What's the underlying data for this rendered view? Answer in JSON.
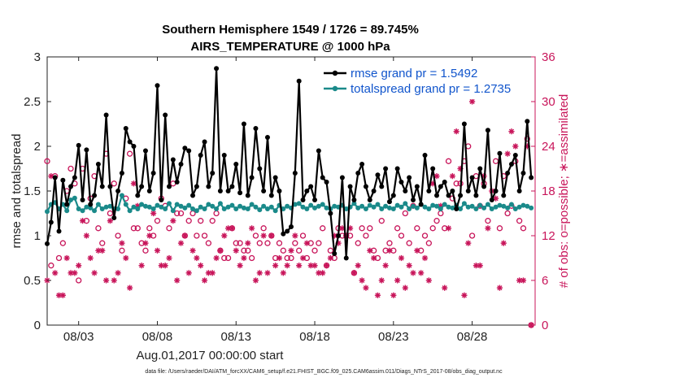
{
  "chart_data": {
    "type": "line",
    "title": "Southern Hemisphere 1549 / 1726 = 89.745%",
    "subtitle": "AIRS_TEMPERATURE @ 1000 hPa",
    "xlabel": "Aug.01,2017 00:00:00 start",
    "ylabel": "rmse and totalspread",
    "ylabel_right": "# of obs: o=possible; ∗=assimilated",
    "footnote": "data file: /Users/raeder/DAI/ATM_forcXX/CAM6_setup/f.e21.FHIST_BGC.f09_025.CAM6assim.011/Diags_NTrS_2017-08/obs_diag_output.nc",
    "xlim": [
      1.0,
      32.0
    ],
    "ylim": [
      0,
      3
    ],
    "ylim_right": [
      0,
      36
    ],
    "x_ticks": [
      3,
      8,
      13,
      18,
      23,
      28
    ],
    "x_tick_labels": [
      "08/03",
      "08/08",
      "08/13",
      "08/18",
      "08/23",
      "08/28"
    ],
    "y_ticks": [
      0,
      0.5,
      1,
      1.5,
      2,
      2.5,
      3
    ],
    "y_tick_labels": [
      "0",
      "0.5",
      "1",
      "1.5",
      "2",
      "2.5",
      "3"
    ],
    "y_ticks_right": [
      0,
      6,
      12,
      18,
      24,
      30,
      36
    ],
    "y_tick_labels_right": [
      "0",
      "6",
      "12",
      "18",
      "24",
      "30",
      "36"
    ],
    "legend_position": "top-right",
    "x": [
      1.0,
      1.25,
      1.5,
      1.75,
      2.0,
      2.25,
      2.5,
      2.75,
      3.0,
      3.25,
      3.5,
      3.75,
      4.0,
      4.25,
      4.5,
      4.75,
      5.0,
      5.25,
      5.5,
      5.75,
      6.0,
      6.25,
      6.5,
      6.75,
      7.0,
      7.25,
      7.5,
      7.75,
      8.0,
      8.25,
      8.5,
      8.75,
      9.0,
      9.25,
      9.5,
      9.75,
      10.0,
      10.25,
      10.5,
      10.75,
      11.0,
      11.25,
      11.5,
      11.75,
      12.0,
      12.25,
      12.5,
      12.75,
      13.0,
      13.25,
      13.5,
      13.75,
      14.0,
      14.25,
      14.5,
      14.75,
      15.0,
      15.25,
      15.5,
      15.75,
      16.0,
      16.25,
      16.5,
      16.75,
      17.0,
      17.25,
      17.5,
      17.75,
      18.0,
      18.25,
      18.5,
      18.75,
      19.0,
      19.25,
      19.5,
      19.75,
      20.0,
      20.25,
      20.5,
      20.75,
      21.0,
      21.25,
      21.5,
      21.75,
      22.0,
      22.25,
      22.5,
      22.75,
      23.0,
      23.25,
      23.5,
      23.75,
      24.0,
      24.25,
      24.5,
      24.75,
      25.0,
      25.25,
      25.5,
      25.75,
      26.0,
      26.25,
      26.5,
      26.75,
      27.0,
      27.25,
      27.5,
      27.75,
      28.0,
      28.25,
      28.5,
      28.75,
      29.0,
      29.25,
      29.5,
      29.75,
      30.0,
      30.25,
      30.5,
      30.75,
      31.0,
      31.25,
      31.5,
      31.75
    ],
    "series": [
      {
        "name": "rmse grand pr = 1.5492",
        "color": "#000000",
        "marker": "dot",
        "values": [
          0.91,
          1.15,
          1.65,
          1.05,
          1.62,
          1.35,
          1.55,
          1.65,
          2.01,
          1.4,
          1.96,
          1.35,
          1.45,
          1.8,
          1.55,
          2.35,
          1.55,
          1.2,
          1.5,
          1.7,
          2.2,
          2.05,
          2.0,
          1.45,
          1.55,
          1.95,
          1.5,
          1.7,
          2.68,
          1.4,
          2.35,
          1.55,
          1.85,
          1.6,
          1.8,
          1.98,
          1.95,
          1.45,
          1.55,
          1.9,
          2.05,
          1.55,
          1.7,
          2.87,
          1.5,
          1.9,
          1.5,
          1.55,
          1.8,
          1.48,
          2.25,
          1.45,
          1.65,
          2.2,
          1.75,
          1.5,
          2.1,
          1.45,
          1.65,
          1.5,
          1.02,
          1.05,
          1.1,
          1.7,
          2.73,
          1.4,
          1.5,
          1.55,
          1.4,
          1.95,
          1.65,
          1.6,
          1.25,
          0.8,
          1.0,
          1.65,
          0.75,
          1.55,
          1.4,
          1.7,
          1.8,
          1.55,
          1.4,
          1.5,
          1.68,
          1.55,
          1.75,
          1.38,
          1.45,
          1.75,
          1.6,
          1.5,
          1.65,
          1.4,
          1.55,
          1.35,
          1.9,
          1.5,
          1.75,
          1.45,
          1.55,
          1.6,
          1.45,
          1.5,
          1.3,
          1.45,
          2.25,
          1.5,
          1.65,
          1.45,
          1.75,
          1.55,
          2.18,
          1.4,
          1.5,
          1.92,
          1.45,
          1.7,
          1.8,
          1.9,
          1.5,
          1.7,
          2.28,
          1.65
        ],
        "label_values": [
          1.5492
        ]
      },
      {
        "name": "totalspread grand pr = 1.2735",
        "color": "#1a8a8a",
        "marker": "dot",
        "values": [
          1.27,
          1.35,
          1.37,
          1.3,
          1.35,
          1.28,
          1.4,
          1.42,
          1.3,
          1.28,
          1.32,
          1.31,
          1.28,
          1.35,
          1.3,
          1.32,
          1.33,
          1.3,
          1.3,
          1.45,
          1.35,
          1.28,
          1.32,
          1.3,
          1.35,
          1.33,
          1.32,
          1.3,
          1.34,
          1.32,
          1.3,
          1.36,
          1.28,
          1.35,
          1.33,
          1.31,
          1.34,
          1.3,
          1.28,
          1.32,
          1.3,
          1.35,
          1.33,
          1.3,
          1.36,
          1.3,
          1.32,
          1.34,
          1.3,
          1.33,
          1.31,
          1.3,
          1.35,
          1.32,
          1.29,
          1.33,
          1.3,
          1.32,
          1.28,
          1.34,
          1.3,
          1.33,
          1.31,
          1.35,
          1.36,
          1.32,
          1.3,
          1.34,
          1.31,
          1.33,
          1.35,
          1.31,
          1.3,
          1.33,
          1.32,
          1.34,
          1.3,
          1.32,
          1.36,
          1.31,
          1.33,
          1.3,
          1.34,
          1.32,
          1.35,
          1.3,
          1.33,
          1.31,
          1.3,
          1.34,
          1.32,
          1.36,
          1.3,
          1.33,
          1.31,
          1.35,
          1.32,
          1.3,
          1.34,
          1.33,
          1.3,
          1.35,
          1.32,
          1.31,
          1.34,
          1.3,
          1.36,
          1.32,
          1.33,
          1.3,
          1.34,
          1.31,
          1.35,
          1.3,
          1.32,
          1.34,
          1.33,
          1.31,
          1.35,
          1.3,
          1.32,
          1.34,
          1.33,
          1.31
        ]
      }
    ],
    "obs_possible": {
      "name": "possible",
      "color": "#c8155a",
      "marker": "circle",
      "values": [
        22,
        8,
        20,
        9,
        11,
        18,
        21,
        19,
        6,
        21,
        14,
        17,
        20,
        13,
        11,
        23,
        15,
        19,
        12,
        10,
        17,
        23,
        13,
        13,
        11,
        10,
        13,
        12,
        14,
        17,
        16,
        13,
        19,
        15,
        15,
        12,
        14,
        15,
        12,
        14,
        12,
        11,
        14,
        15,
        10,
        9,
        9,
        13,
        11,
        11,
        10,
        10,
        9,
        12,
        11,
        13,
        11,
        12,
        9,
        11,
        10,
        9,
        9,
        11,
        10,
        12,
        9,
        11,
        10,
        11,
        13,
        8,
        10,
        9,
        13,
        12,
        12,
        12,
        7,
        11,
        13,
        12,
        13,
        10,
        9,
        14,
        10,
        11,
        10,
        13,
        12,
        15,
        11,
        16,
        13,
        10,
        12,
        11,
        13,
        14,
        15,
        13,
        22,
        17,
        19,
        19,
        22,
        24,
        12,
        20,
        16,
        19,
        14,
        31,
        22,
        13,
        20,
        15,
        16,
        22,
        14,
        13,
        25,
        0
      ]
    },
    "obs_assimilated": {
      "name": "assimilated",
      "color": "#c8155a",
      "marker": "asterisk",
      "values": [
        6,
        20,
        7,
        4,
        4,
        9,
        7,
        7,
        8,
        14,
        12,
        9,
        7,
        10,
        10,
        6,
        14,
        6,
        7,
        11,
        9,
        5,
        19,
        16,
        8,
        11,
        12,
        15,
        10,
        8,
        8,
        9,
        14,
        6,
        11,
        12,
        7,
        10,
        9,
        8,
        6,
        7,
        7,
        9,
        10,
        12,
        13,
        13,
        10,
        8,
        9,
        11,
        13,
        6,
        7,
        12,
        7,
        12,
        8,
        9,
        7,
        8,
        10,
        12,
        8,
        9,
        11,
        8,
        8,
        7,
        7,
        8,
        9,
        12,
        11,
        13,
        12,
        13,
        7,
        8,
        6,
        5,
        10,
        9,
        4,
        6,
        8,
        10,
        4,
        6,
        9,
        5,
        8,
        7,
        10,
        7,
        9,
        6,
        19,
        20,
        16,
        5,
        13,
        20,
        26,
        21,
        4,
        11,
        30,
        8,
        8,
        20,
        13,
        18,
        17,
        5,
        11,
        23,
        26,
        24,
        6,
        6,
        24,
        0
      ]
    }
  }
}
